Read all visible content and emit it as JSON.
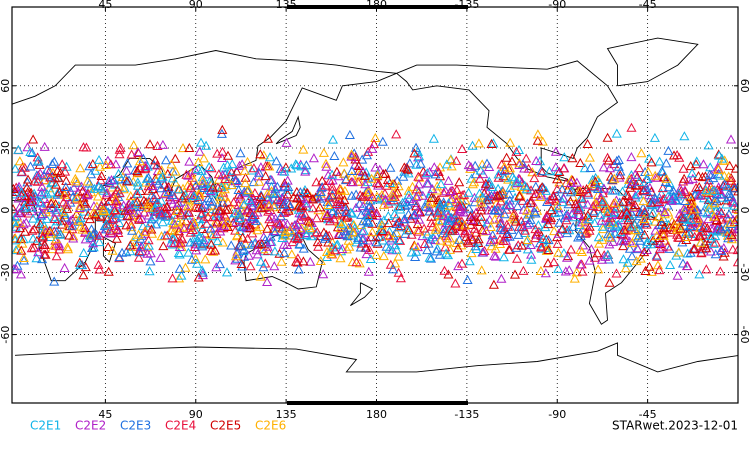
{
  "chart_data": {
    "type": "map",
    "xlim": [
      -1.5,
      360
    ],
    "ylim": [
      -93,
      98
    ],
    "xticks": [
      45,
      90,
      135,
      180,
      -135,
      -90,
      -45
    ],
    "yticks": [
      60,
      30,
      0,
      -30,
      -60
    ],
    "grid": true,
    "series": [
      {
        "name": "C2E1",
        "color": "#10b4e8"
      },
      {
        "name": "C2E2",
        "color": "#b020c8"
      },
      {
        "name": "C2E3",
        "color": "#2070e0"
      },
      {
        "name": "C2E4",
        "color": "#e8103c"
      },
      {
        "name": "C2E5",
        "color": "#d00000"
      },
      {
        "name": "C2E6",
        "color": "#ffb000"
      }
    ],
    "footer": "STARwet.2023-12-01"
  }
}
